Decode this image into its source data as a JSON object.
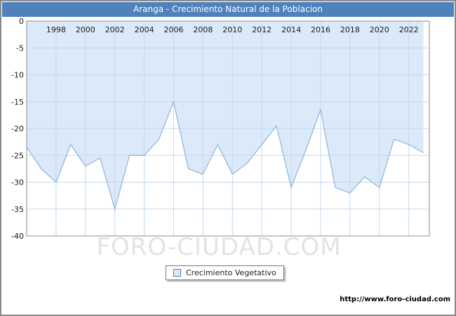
{
  "chart_data": {
    "type": "area",
    "title": "Aranga - Crecimiento Natural de la Poblacion",
    "legend_label": "Crecimiento Vegetativo",
    "series": [
      {
        "name": "Crecimiento Vegetativo",
        "x": [
          1996,
          1997,
          1998,
          1999,
          2000,
          2001,
          2002,
          2003,
          2004,
          2005,
          2006,
          2007,
          2008,
          2009,
          2010,
          2011,
          2012,
          2013,
          2014,
          2015,
          2016,
          2017,
          2018,
          2019,
          2020,
          2021,
          2022,
          2023
        ],
        "values": [
          -23.5,
          -27.5,
          -30,
          -23,
          -27,
          -25.5,
          -35,
          -25,
          -25,
          -22,
          -15,
          -27.5,
          -28.5,
          -23,
          -28.5,
          -26.5,
          -23,
          -19.5,
          -31,
          -24,
          -16.5,
          -31,
          -32,
          -29,
          -31,
          -22,
          -23,
          -24.5
        ]
      }
    ],
    "xlim": [
      1996,
      2023.4
    ],
    "ylim": [
      -40,
      0
    ],
    "xticks": [
      1998,
      2000,
      2002,
      2004,
      2006,
      2008,
      2010,
      2012,
      2014,
      2016,
      2018,
      2020,
      2022
    ],
    "yticks": [
      0,
      -5,
      -10,
      -15,
      -20,
      -25,
      -30,
      -35,
      -40
    ],
    "grid": true,
    "legend_position": "bottom-center",
    "xlabel": "",
    "ylabel": ""
  },
  "watermark": "FORO-CIUDAD.COM",
  "footer_url": "http://www.foro-ciudad.com",
  "colors": {
    "titlebar_bg": "#4f81bd",
    "titlebar_text": "#ffffff",
    "area_fill": "#dbe9f9",
    "line": "#94b8de",
    "grid": "#c3d9ef",
    "plot_border": "#8c8c8c",
    "tick_text": "#1a1a1a",
    "watermark_text": "#e3e3e3"
  }
}
